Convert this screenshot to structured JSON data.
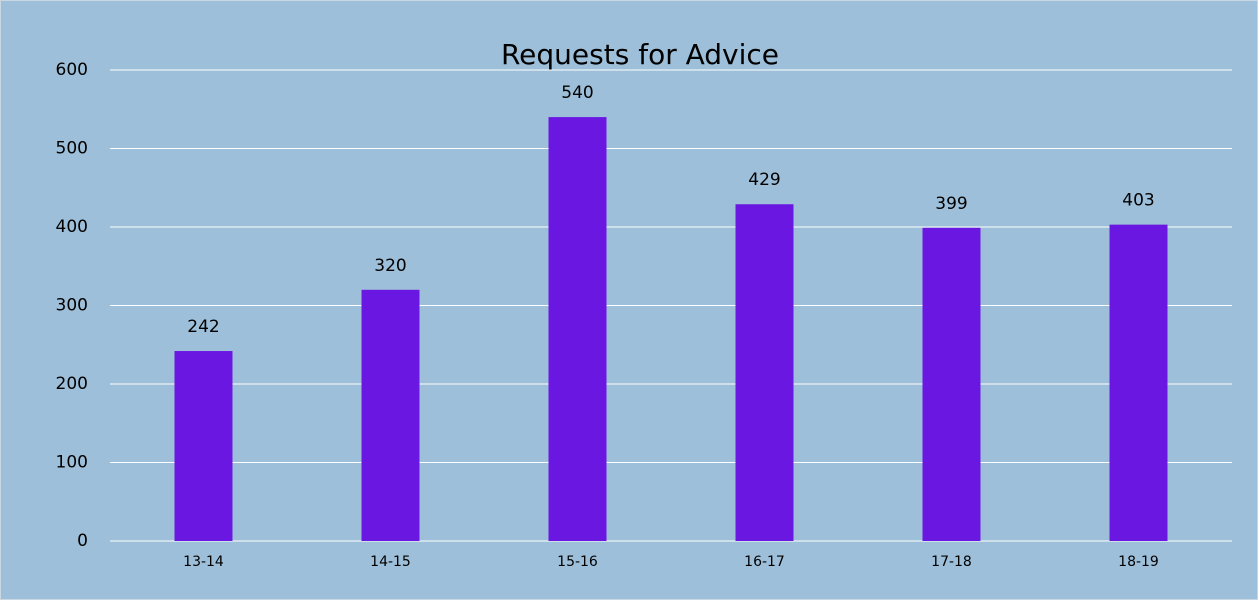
{
  "chart_data": {
    "type": "bar",
    "title": "Requests for Advice",
    "categories": [
      "13-14",
      "14-15",
      "15-16",
      "16-17",
      "17-18",
      "18-19"
    ],
    "values": [
      242,
      320,
      540,
      429,
      399,
      403
    ],
    "color": "#6a17e2",
    "ylim": [
      0,
      600
    ],
    "yticks": [
      0,
      100,
      200,
      300,
      400,
      500,
      600
    ],
    "grid": true
  }
}
